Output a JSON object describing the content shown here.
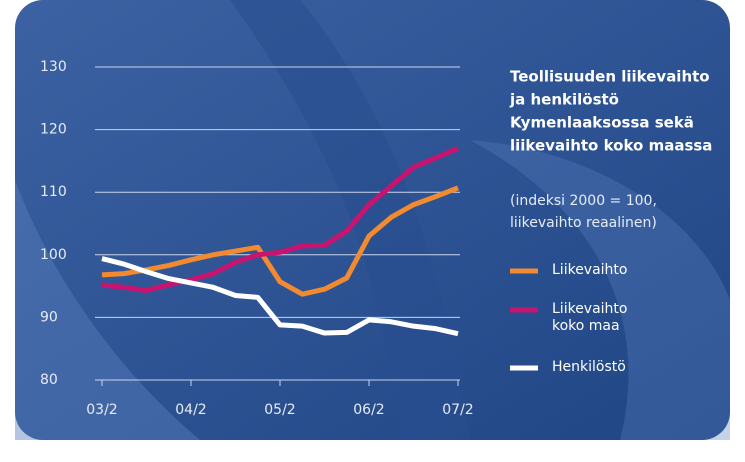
{
  "chart_data": {
    "type": "line",
    "title": [
      "Teollisuuden liikevaihto",
      "ja henkilöstö",
      "Kymenlaaksossa sekä",
      "liikevaihto koko maassa"
    ],
    "subtitle": [
      "(indeksi 2000 = 100,",
      "liikevaihto reaalinen)"
    ],
    "categories": [
      "03/2",
      null,
      null,
      null,
      "04/2",
      null,
      null,
      null,
      "05/2",
      null,
      null,
      null,
      "06/2",
      null,
      null,
      null,
      "07/2"
    ],
    "series": [
      {
        "name": "Liikevaihto",
        "color": "#f28a30",
        "values": [
          96.8,
          97.0,
          97.6,
          98.3,
          99.2,
          100.0,
          100.6,
          101.2,
          95.7,
          93.7,
          94.5,
          96.3,
          103.0,
          106.0,
          108.0,
          109.3,
          110.7
        ]
      },
      {
        "name": "Liikevaihto koko maa",
        "color": "#c8146f",
        "values": [
          95.2,
          94.8,
          94.3,
          95.2,
          96.0,
          97.0,
          98.8,
          100.0,
          100.4,
          101.4,
          101.5,
          103.8,
          108.0,
          111.0,
          114.0,
          115.5,
          117.0
        ]
      },
      {
        "name": "Henkilöstö",
        "color": "#ffffff",
        "values": [
          99.4,
          98.5,
          97.3,
          96.2,
          95.5,
          94.8,
          93.5,
          93.2,
          88.8,
          88.6,
          87.5,
          87.6,
          89.6,
          89.3,
          88.6,
          88.2,
          87.4
        ]
      }
    ],
    "ylim": [
      80,
      130
    ],
    "yticks": [
      80,
      90,
      100,
      110,
      120,
      130
    ],
    "grid": true
  }
}
